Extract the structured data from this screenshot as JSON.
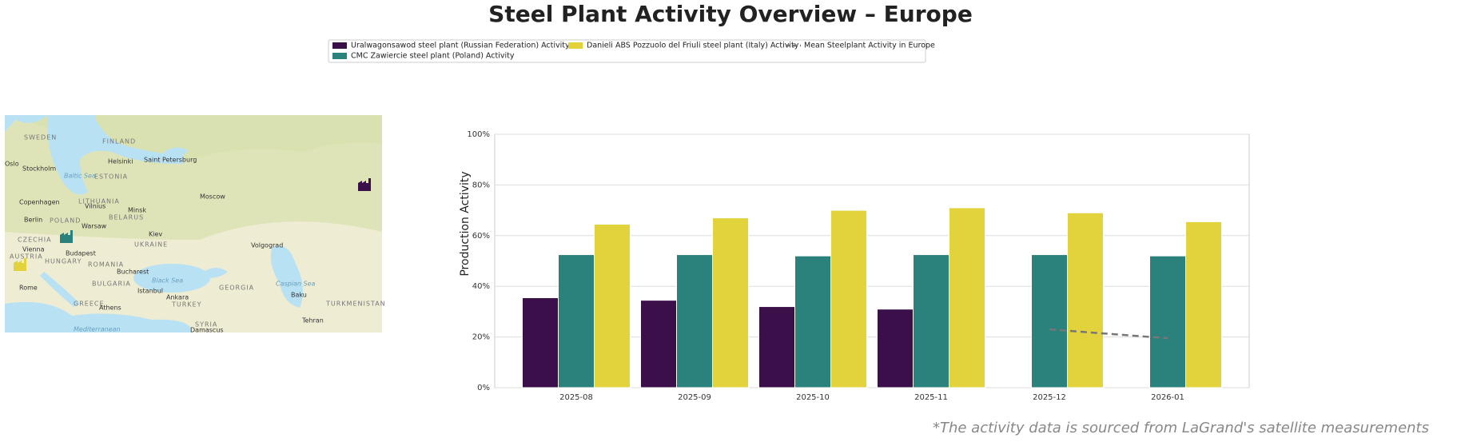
{
  "chart_data": {
    "type": "bar",
    "title": "Steel Plant Activity Overview – Europe",
    "ylabel": "Production Activity",
    "note": "*The activity data is sourced from LaGrand's satellite measurements",
    "categories": [
      "2025-08",
      "2025-09",
      "2025-10",
      "2025-11",
      "2025-12",
      "2026-01"
    ],
    "series": [
      {
        "name": "Uralwagonsawod steel plant (Russian Federation) Activity",
        "color": "#3b0f4a",
        "values": [
          35.5,
          34.5,
          32,
          31,
          null,
          null
        ]
      },
      {
        "name": "CMC Zawiercie steel plant (Poland) Activity",
        "color": "#2b827c",
        "values": [
          52.5,
          52.5,
          52,
          52.5,
          52.5,
          52
        ]
      },
      {
        "name": "Danieli ABS Pozzuolo del Friuli steel plant (Italy) Activity",
        "color": "#e2d23c",
        "values": [
          64.5,
          67,
          70,
          71,
          69,
          65.5
        ]
      },
      {
        "name": "Mean Steelplant Activity in Europe",
        "color": "#777777",
        "type": "line",
        "dashed": true,
        "values": [
          null,
          null,
          null,
          null,
          23,
          19.5
        ]
      }
    ],
    "ylim": [
      0,
      100
    ],
    "yticks": [
      {
        "value": 0,
        "label": "0%"
      },
      {
        "value": 20,
        "label": "20%"
      },
      {
        "value": 40,
        "label": "40%"
      },
      {
        "value": 60,
        "label": "60%"
      },
      {
        "value": 80,
        "label": "80%"
      },
      {
        "value": 100,
        "label": "100%"
      }
    ],
    "grid": true
  },
  "map": {
    "labels": [
      "SWEDEN",
      "FINLAND",
      "Helsinki",
      "Saint Petersburg",
      "Oslo",
      "Stockholm",
      "ESTONIA",
      "Baltic Sea",
      "Copenhagen",
      "LITHUANIA",
      "Vilnius",
      "Moscow",
      "Minsk",
      "Berlin",
      "POLAND",
      "BELARUS",
      "Warsaw",
      "Kiev",
      "CZECHIA",
      "UKRAINE",
      "Volgograd",
      "Vienna",
      "AUSTRIA",
      "Budapest",
      "HUNGARY",
      "ROMANIA",
      "Bucharest",
      "Black Sea",
      "Rome",
      "BULGARIA",
      "Istanbul",
      "GEORGIA",
      "Caspian Sea",
      "Ankara",
      "Baku",
      "GREECE",
      "TURKEY",
      "TURKMENISTAN",
      "Athens",
      "Tehran",
      "SYRIA",
      "Damascus",
      "Mediterranean"
    ]
  }
}
